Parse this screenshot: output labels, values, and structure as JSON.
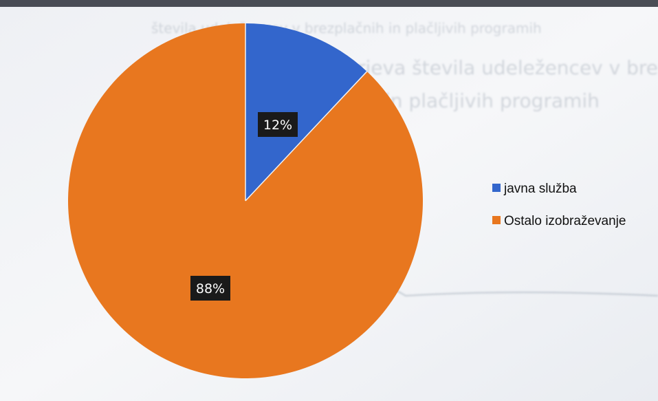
{
  "chart_data": {
    "type": "pie",
    "title": "",
    "start_angle_deg": 0,
    "direction": "clockwise",
    "categories": [
      "javna služba",
      "Ostalo izobraževanje"
    ],
    "values": [
      12,
      88
    ],
    "data_labels": [
      "12%",
      "88%"
    ],
    "colors": [
      "#3366cc",
      "#e8771f"
    ],
    "legend": {
      "position": "right",
      "entries": [
        "javna služba",
        "Ostalo izobraževanje"
      ]
    }
  }
}
